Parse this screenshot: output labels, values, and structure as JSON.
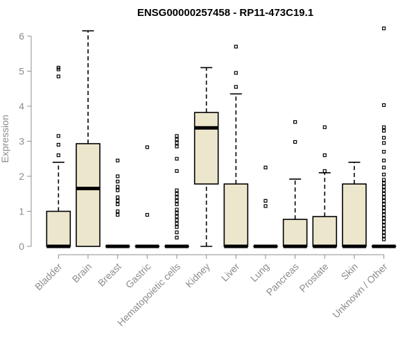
{
  "chart_data": {
    "type": "box",
    "title": "ENSG00000257458 - RP11-473C19.1",
    "xlabel": "",
    "ylabel": "Expression",
    "ylim": [
      0,
      6.3
    ],
    "yticks": [
      0,
      1,
      2,
      3,
      4,
      5,
      6
    ],
    "categories": [
      "Bladder",
      "Brain",
      "Breast",
      "Gastric",
      "Hematopoietic cells",
      "Kidney",
      "Liver",
      "Lung",
      "Pancreas",
      "Prostate",
      "Skin",
      "Unknown / Other"
    ],
    "boxes": [
      {
        "category": "Bladder",
        "q1": 0,
        "median": 0,
        "q3": 1.0,
        "whisker_low": 0,
        "whisker_high": 2.4,
        "outliers": [
          5.1,
          5.05,
          4.85,
          3.15,
          2.9,
          2.6
        ]
      },
      {
        "category": "Brain",
        "q1": 0,
        "median": 1.65,
        "q3": 2.93,
        "whisker_low": 0,
        "whisker_high": 6.15,
        "outliers": []
      },
      {
        "category": "Breast",
        "q1": 0,
        "median": 0,
        "q3": 0,
        "whisker_low": 0,
        "whisker_high": 0,
        "outliers": [
          2.45,
          2.0,
          1.85,
          1.7,
          1.6,
          1.4,
          1.3,
          1.2,
          1.0,
          0.9
        ]
      },
      {
        "category": "Gastric",
        "q1": 0,
        "median": 0,
        "q3": 0,
        "whisker_low": 0,
        "whisker_high": 0,
        "outliers": [
          2.83,
          0.9
        ]
      },
      {
        "category": "Hematopoietic cells",
        "q1": 0,
        "median": 0,
        "q3": 0,
        "whisker_low": 0,
        "whisker_high": 0,
        "outliers": [
          3.15,
          3.05,
          2.95,
          2.85,
          2.5,
          2.15,
          1.6,
          1.5,
          1.4,
          1.3,
          1.2,
          1.05,
          0.95,
          0.85,
          0.75,
          0.65,
          0.55,
          0.4,
          0.25
        ]
      },
      {
        "category": "Kidney",
        "q1": 1.78,
        "median": 3.38,
        "q3": 3.82,
        "whisker_low": 0,
        "whisker_high": 5.1,
        "outliers": []
      },
      {
        "category": "Liver",
        "q1": 0,
        "median": 0,
        "q3": 1.78,
        "whisker_low": 0,
        "whisker_high": 4.35,
        "outliers": [
          5.7,
          4.95,
          4.55
        ]
      },
      {
        "category": "Lung",
        "q1": 0,
        "median": 0,
        "q3": 0,
        "whisker_low": 0,
        "whisker_high": 0,
        "outliers": [
          2.25,
          1.3,
          1.15
        ]
      },
      {
        "category": "Pancreas",
        "q1": 0,
        "median": 0,
        "q3": 0.77,
        "whisker_low": 0,
        "whisker_high": 1.92,
        "outliers": [
          3.55,
          2.98
        ]
      },
      {
        "category": "Prostate",
        "q1": 0,
        "median": 0,
        "q3": 0.85,
        "whisker_low": 0,
        "whisker_high": 2.1,
        "outliers": [
          3.4,
          2.6,
          2.15
        ]
      },
      {
        "category": "Skin",
        "q1": 0,
        "median": 0,
        "q3": 1.78,
        "whisker_low": 0,
        "whisker_high": 2.4,
        "outliers": []
      },
      {
        "category": "Unknown / Other",
        "q1": 0,
        "median": 0,
        "q3": 0,
        "whisker_low": 0,
        "whisker_high": 0,
        "outliers": [
          6.22,
          4.03,
          3.4,
          3.3,
          3.1,
          2.95,
          2.7,
          2.45,
          2.25,
          2.05,
          1.9,
          1.8,
          1.7,
          1.6,
          1.5,
          1.4,
          1.3,
          1.2,
          1.1,
          1.0,
          0.9,
          0.8,
          0.7,
          0.6,
          0.5,
          0.4,
          0.3,
          0.2
        ]
      }
    ],
    "grid": false,
    "legend": "none",
    "colors": {
      "box_fill": "#ece6cd",
      "stroke": "#000000",
      "axis": "#8c8c8c"
    }
  }
}
